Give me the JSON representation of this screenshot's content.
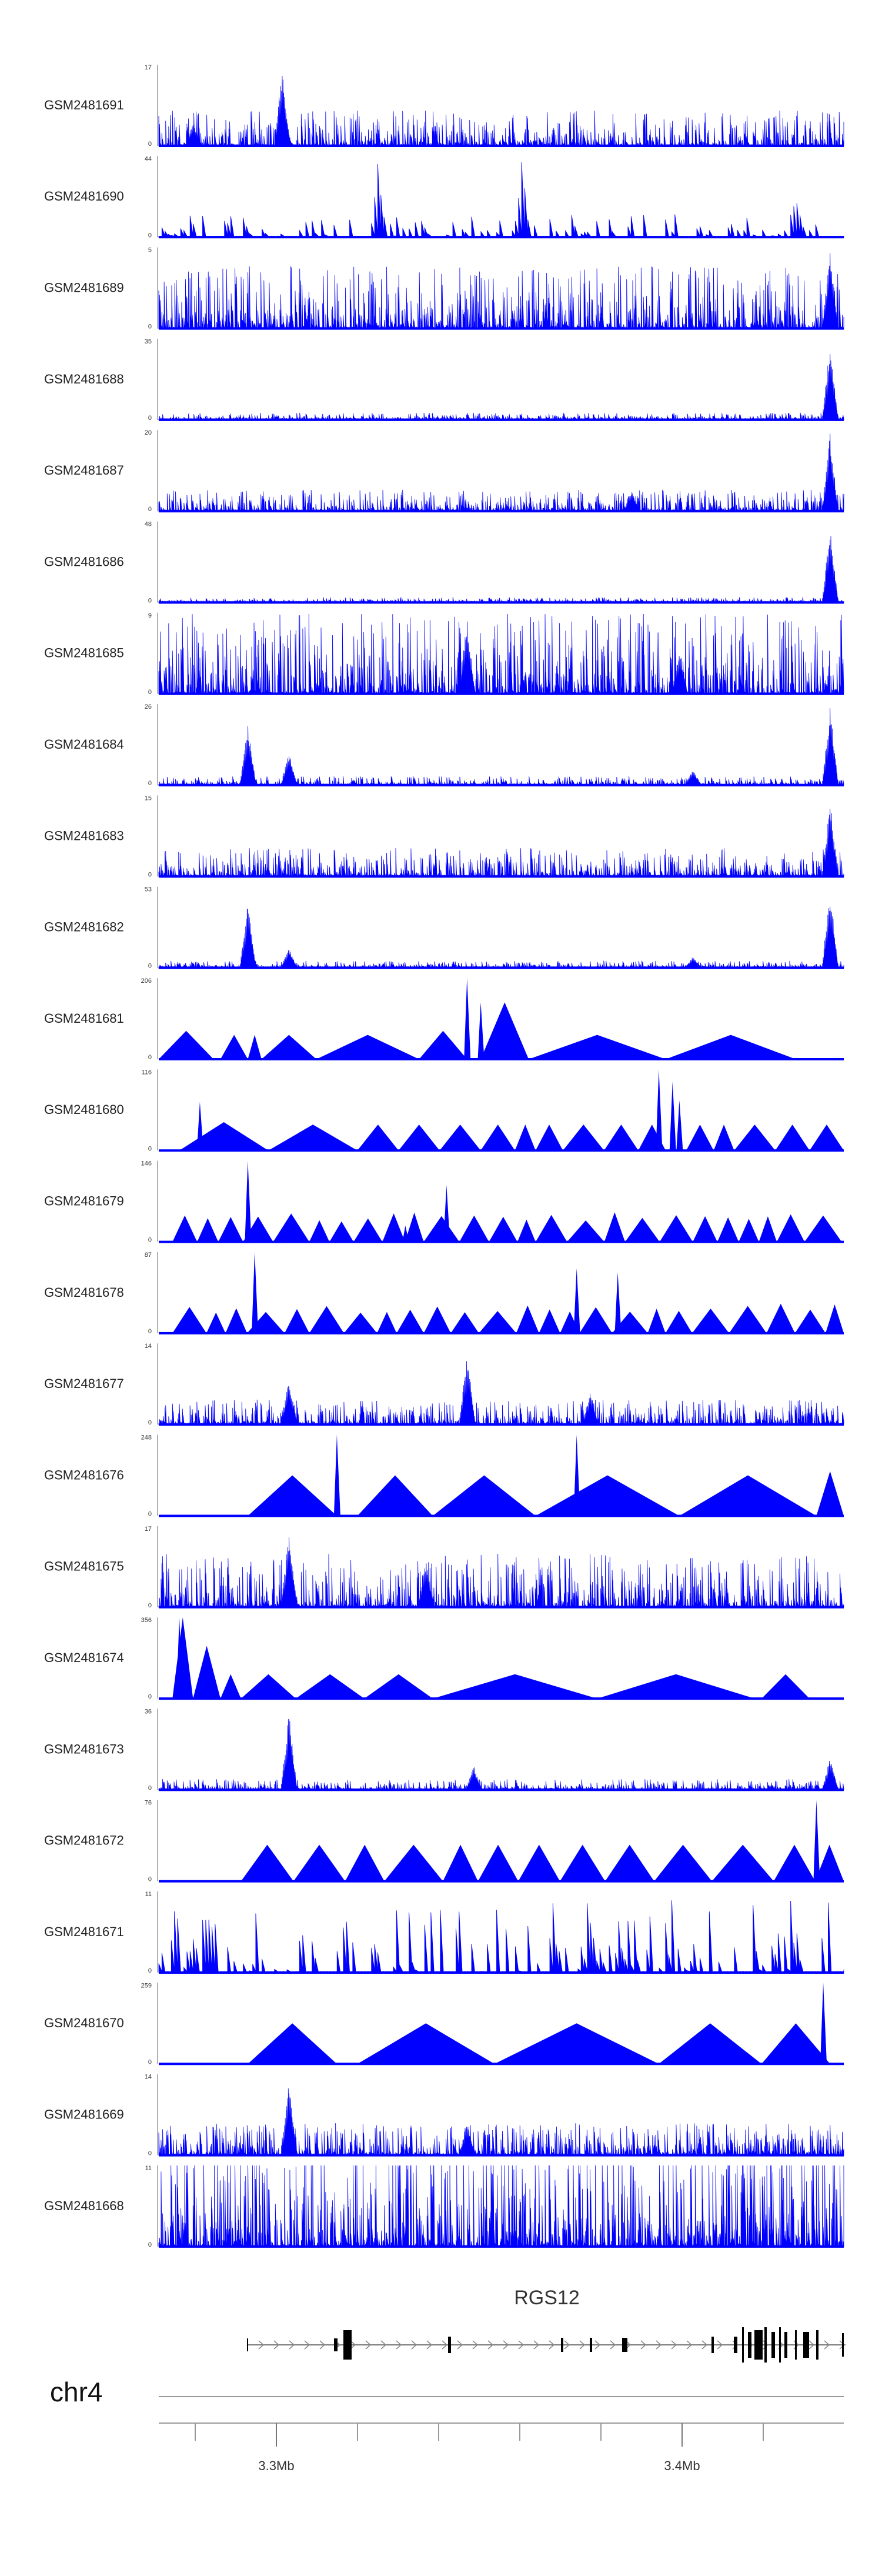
{
  "chart_data": {
    "type": "area",
    "title": "",
    "chromosome": "chr4",
    "gene": "RGS12",
    "genomic_axis": {
      "ticks": [
        {
          "position_mb": 3.3,
          "label": "3.3Mb"
        },
        {
          "position_mb": 3.4,
          "label": "3.4Mb"
        }
      ],
      "minor_tick_count": 9
    },
    "color": "#0000ff",
    "tracks": [
      {
        "name": "GSM2481691",
        "max": "17",
        "min": "0",
        "style": "dense",
        "seed": 11,
        "peaks": [
          [
            0.18,
            0.95
          ],
          [
            0.05,
            0.3
          ]
        ]
      },
      {
        "name": "GSM2481690",
        "max": "44",
        "min": "0",
        "style": "sparse",
        "seed": 12,
        "peaks": [
          [
            0.32,
            0.95
          ],
          [
            0.53,
            0.95
          ],
          [
            0.93,
            0.55
          ]
        ]
      },
      {
        "name": "GSM2481689",
        "max": "5",
        "min": "0",
        "style": "dense",
        "seed": 13,
        "peaks": [
          [
            0.98,
            0.97
          ]
        ],
        "base": 0.35
      },
      {
        "name": "GSM2481688",
        "max": "35",
        "min": "0",
        "style": "dense",
        "seed": 14,
        "peaks": [
          [
            0.98,
            0.97
          ]
        ],
        "base": 0.04
      },
      {
        "name": "GSM2481687",
        "max": "20",
        "min": "0",
        "style": "dense",
        "seed": 15,
        "peaks": [
          [
            0.98,
            0.97
          ],
          [
            0.69,
            0.28
          ]
        ],
        "base": 0.12
      },
      {
        "name": "GSM2481686",
        "max": "48",
        "min": "0",
        "style": "dense",
        "seed": 16,
        "peaks": [
          [
            0.98,
            0.97
          ]
        ],
        "base": 0.03
      },
      {
        "name": "GSM2481685",
        "max": "9",
        "min": "0",
        "style": "dense",
        "seed": 17,
        "peaks": [
          [
            0.45,
            0.95
          ],
          [
            0.76,
            0.6
          ]
        ],
        "base": 0.45
      },
      {
        "name": "GSM2481684",
        "max": "26",
        "min": "0",
        "style": "dense",
        "seed": 18,
        "peaks": [
          [
            0.13,
            0.75
          ],
          [
            0.19,
            0.42
          ],
          [
            0.98,
            0.97
          ],
          [
            0.78,
            0.2
          ]
        ],
        "base": 0.05
      },
      {
        "name": "GSM2481683",
        "max": "15",
        "min": "0",
        "style": "dense",
        "seed": 19,
        "peaks": [
          [
            0.98,
            0.97
          ]
        ],
        "base": 0.16
      },
      {
        "name": "GSM2481682",
        "max": "53",
        "min": "0",
        "style": "dense",
        "seed": 20,
        "peaks": [
          [
            0.13,
            0.8
          ],
          [
            0.19,
            0.25
          ],
          [
            0.98,
            0.97
          ],
          [
            0.78,
            0.15
          ]
        ],
        "base": 0.04
      },
      {
        "name": "GSM2481681",
        "max": "206",
        "min": "0",
        "style": "tri",
        "seed": 21,
        "peaks": [
          [
            0.45,
            1.0
          ],
          [
            0.47,
            0.7
          ]
        ],
        "tri": [
          [
            0.0,
            0.08,
            0.35
          ],
          [
            0.09,
            0.13,
            0.3
          ],
          [
            0.13,
            0.15,
            0.3
          ],
          [
            0.15,
            0.23,
            0.3
          ],
          [
            0.23,
            0.38,
            0.3
          ],
          [
            0.38,
            0.45,
            0.35
          ],
          [
            0.47,
            0.54,
            0.7
          ],
          [
            0.54,
            0.74,
            0.3
          ],
          [
            0.74,
            0.93,
            0.3
          ]
        ]
      },
      {
        "name": "GSM2481680",
        "max": "116",
        "min": "0",
        "style": "tri",
        "seed": 22,
        "peaks": [
          [
            0.06,
            0.6
          ],
          [
            0.73,
            1.0
          ],
          [
            0.75,
            0.85
          ],
          [
            0.76,
            0.62
          ]
        ],
        "tri": [
          [
            0.03,
            0.16,
            0.35
          ],
          [
            0.16,
            0.29,
            0.32
          ],
          [
            0.29,
            0.35,
            0.32
          ],
          [
            0.35,
            0.41,
            0.32
          ],
          [
            0.41,
            0.47,
            0.32
          ],
          [
            0.47,
            0.52,
            0.32
          ],
          [
            0.52,
            0.55,
            0.32
          ],
          [
            0.55,
            0.59,
            0.32
          ],
          [
            0.59,
            0.65,
            0.32
          ],
          [
            0.65,
            0.7,
            0.32
          ],
          [
            0.7,
            0.74,
            0.32
          ],
          [
            0.77,
            0.81,
            0.32
          ],
          [
            0.81,
            0.84,
            0.32
          ],
          [
            0.84,
            0.9,
            0.32
          ],
          [
            0.9,
            0.95,
            0.32
          ],
          [
            0.95,
            1.0,
            0.32
          ]
        ]
      },
      {
        "name": "GSM2481679",
        "max": "146",
        "min": "0",
        "style": "tri",
        "seed": 23,
        "peaks": [
          [
            0.13,
            1.0
          ],
          [
            0.42,
            0.7
          ],
          [
            0.36,
            0.2
          ]
        ],
        "style2": "many"
      },
      {
        "name": "GSM2481678",
        "max": "87",
        "min": "0",
        "style": "tri",
        "seed": 24,
        "peaks": [
          [
            0.14,
            1.0
          ],
          [
            0.61,
            0.8
          ],
          [
            0.67,
            0.75
          ]
        ],
        "style2": "many"
      },
      {
        "name": "GSM2481677",
        "max": "14",
        "min": "0",
        "style": "dense",
        "seed": 25,
        "peaks": [
          [
            0.19,
            0.6
          ],
          [
            0.45,
            0.9
          ],
          [
            0.63,
            0.4
          ]
        ],
        "base": 0.14
      },
      {
        "name": "GSM2481676",
        "max": "248",
        "min": "0",
        "style": "tri",
        "seed": 26,
        "peaks": [
          [
            0.26,
            1.0
          ],
          [
            0.61,
            1.0
          ]
        ],
        "tri": [
          [
            0.13,
            0.26,
            0.5
          ],
          [
            0.29,
            0.4,
            0.5
          ],
          [
            0.4,
            0.55,
            0.5
          ],
          [
            0.55,
            0.76,
            0.5
          ],
          [
            0.76,
            0.96,
            0.5
          ],
          [
            0.96,
            1.0,
            0.55
          ]
        ]
      },
      {
        "name": "GSM2481675",
        "max": "17",
        "min": "0",
        "style": "dense",
        "seed": 27,
        "peaks": [
          [
            0.19,
            0.95
          ],
          [
            0.39,
            0.6
          ]
        ],
        "base": 0.3
      },
      {
        "name": "GSM2481674",
        "max": "356",
        "min": "0",
        "style": "tri",
        "seed": 28,
        "peaks": [
          [
            0.03,
            1.0
          ]
        ],
        "tri": [
          [
            0.02,
            0.05,
            1.0
          ],
          [
            0.05,
            0.09,
            0.65
          ],
          [
            0.09,
            0.12,
            0.3
          ],
          [
            0.12,
            0.2,
            0.3
          ],
          [
            0.2,
            0.3,
            0.3
          ],
          [
            0.3,
            0.4,
            0.3
          ],
          [
            0.4,
            0.64,
            0.3
          ],
          [
            0.64,
            0.87,
            0.3
          ],
          [
            0.88,
            0.95,
            0.3
          ]
        ]
      },
      {
        "name": "GSM2481673",
        "max": "36",
        "min": "0",
        "style": "dense",
        "seed": 29,
        "peaks": [
          [
            0.19,
            0.98
          ],
          [
            0.46,
            0.3
          ],
          [
            0.98,
            0.4
          ]
        ],
        "base": 0.06
      },
      {
        "name": "GSM2481672",
        "max": "76",
        "min": "0",
        "style": "tri",
        "seed": 30,
        "peaks": [
          [
            0.96,
            1.0
          ]
        ],
        "style2": "mid"
      },
      {
        "name": "GSM2481671",
        "max": "11",
        "min": "0",
        "style": "sparse",
        "seed": 31,
        "peaks": [
          [
            0.63,
            0.75
          ]
        ],
        "base": 0.6
      },
      {
        "name": "GSM2481670",
        "max": "259",
        "min": "0",
        "style": "tri",
        "seed": 32,
        "peaks": [
          [
            0.97,
            1.0
          ]
        ],
        "tri": [
          [
            0.13,
            0.26,
            0.5
          ],
          [
            0.29,
            0.49,
            0.5
          ],
          [
            0.49,
            0.73,
            0.5
          ],
          [
            0.73,
            0.88,
            0.5
          ],
          [
            0.88,
            0.98,
            0.5
          ]
        ]
      },
      {
        "name": "GSM2481669",
        "max": "14",
        "min": "0",
        "style": "dense",
        "seed": 33,
        "peaks": [
          [
            0.19,
            0.95
          ],
          [
            0.45,
            0.45
          ]
        ],
        "base": 0.18
      },
      {
        "name": "GSM2481668",
        "max": "11",
        "min": "0",
        "style": "dense",
        "seed": 34,
        "peaks": [],
        "base": 0.6
      }
    ]
  }
}
